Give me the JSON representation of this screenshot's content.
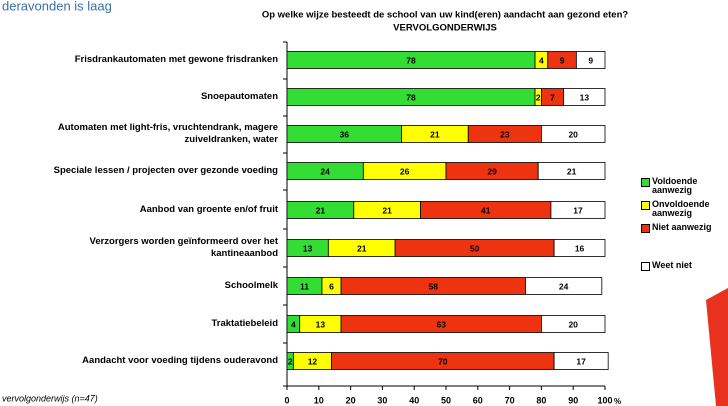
{
  "page_header": "deravonden is laag",
  "footnote": "vervolgonderwijs (n=47)",
  "chart_data": {
    "type": "bar",
    "orientation": "horizontal",
    "stacked": true,
    "title": "Op welke wijze besteedt de school van uw kind(eren) aandacht aan gezond eten?",
    "subtitle": "VERVOLGONDERWIJS",
    "categories": [
      "Frisdrankautomaten met gewone frisdranken",
      "Snoepautomaten",
      "Automaten met light-fris, vruchtendrank, magere zuiveldranken, water",
      "Speciale lessen / projecten over gezonde voeding",
      "Aanbod van groente en/of fruit",
      "Verzorgers worden geïnformeerd over het kantineaanbod",
      "Schoolmelk",
      "Traktatiebeleid",
      "Aandacht voor voeding tijdens ouderavond"
    ],
    "series": [
      {
        "name": "Voldoende aanwezig",
        "color": "#33dd33",
        "values": [
          78,
          78,
          36,
          24,
          21,
          13,
          11,
          4,
          2
        ]
      },
      {
        "name": "Onvoldoende aanwezig",
        "color": "#ffff00",
        "values": [
          4,
          2,
          21,
          26,
          21,
          21,
          6,
          13,
          12
        ]
      },
      {
        "name": "Niet aanwezig",
        "color": "#ee3311",
        "values": [
          9,
          7,
          23,
          29,
          41,
          50,
          58,
          63,
          70
        ]
      },
      {
        "name": "Weet niet",
        "color": "#ffffff",
        "values": [
          9,
          13,
          20,
          21,
          17,
          16,
          24,
          20,
          17
        ]
      }
    ],
    "xlim": [
      0,
      100
    ],
    "xticks": [
      0,
      10,
      20,
      30,
      40,
      50,
      60,
      70,
      80,
      90,
      100
    ],
    "x_label": "%"
  }
}
